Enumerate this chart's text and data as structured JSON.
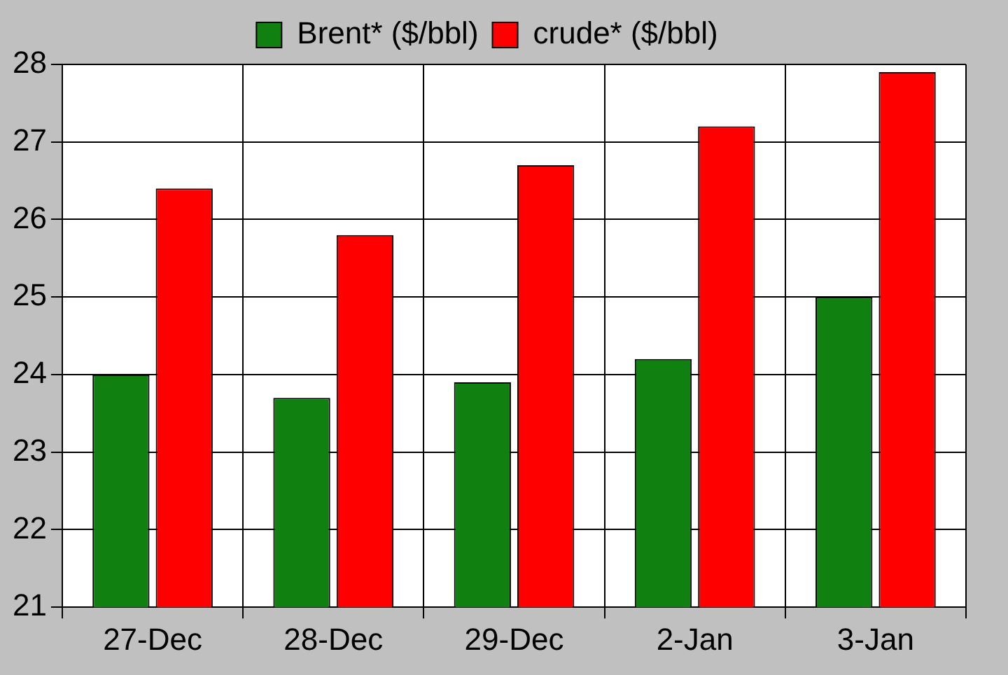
{
  "chart_data": {
    "type": "bar",
    "categories": [
      "27-Dec",
      "28-Dec",
      "29-Dec",
      "2-Jan",
      "3-Jan"
    ],
    "series": [
      {
        "name": "Brent* ($/bbl)",
        "color": "#108010",
        "values": [
          24.0,
          23.7,
          23.9,
          24.2,
          25.0
        ]
      },
      {
        "name": "crude* ($/bbl)",
        "color": "#ff0000",
        "values": [
          26.4,
          25.8,
          26.7,
          27.2,
          27.9
        ]
      }
    ],
    "ylim": [
      21,
      28
    ],
    "yticks": [
      21,
      22,
      23,
      24,
      25,
      26,
      27,
      28
    ],
    "grid": true,
    "legend": "top"
  }
}
